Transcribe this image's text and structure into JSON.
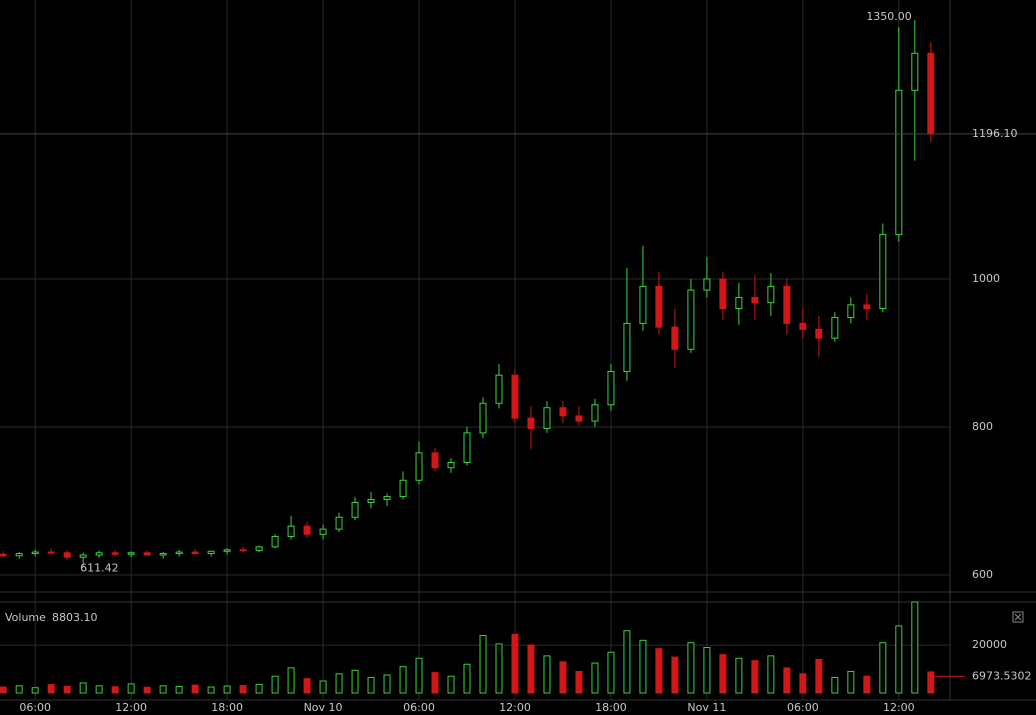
{
  "chart_data": {
    "type": "candlestick",
    "x": [
      4,
      5,
      6,
      7,
      8,
      9,
      10,
      11,
      12,
      13,
      14,
      15,
      16,
      17,
      18,
      19,
      20,
      21,
      22,
      23,
      24,
      25,
      26,
      27,
      28,
      29,
      30,
      31,
      32,
      33,
      34,
      35,
      36,
      37,
      38,
      39,
      40,
      41,
      42,
      43,
      44,
      45,
      46,
      47,
      48,
      49,
      50,
      51,
      52,
      53,
      54,
      55,
      56,
      57,
      58,
      59,
      60,
      61,
      62
    ],
    "open": [
      628,
      626,
      629,
      631,
      630,
      624,
      627,
      630,
      628,
      630,
      627,
      629,
      631,
      629,
      632,
      634,
      633,
      638,
      652,
      666,
      655,
      662,
      678,
      698,
      702,
      706,
      728,
      765,
      745,
      752,
      792,
      832,
      870,
      812,
      798,
      826,
      815,
      808,
      830,
      875,
      940,
      990,
      935,
      905,
      985,
      1000,
      960,
      975,
      968,
      990,
      940,
      932,
      920,
      948,
      965,
      960,
      1060,
      1255,
      1305
    ],
    "high": [
      632,
      631,
      634,
      636,
      633,
      630,
      633,
      634,
      632,
      633,
      631,
      634,
      635,
      633,
      636,
      638,
      640,
      655,
      680,
      672,
      668,
      684,
      705,
      712,
      710,
      740,
      780,
      772,
      758,
      800,
      840,
      885,
      878,
      828,
      835,
      835,
      828,
      838,
      885,
      1015,
      1045,
      1010,
      960,
      1000,
      1030,
      1010,
      995,
      1005,
      1008,
      1000,
      960,
      950,
      955,
      975,
      980,
      1075,
      1340,
      1350,
      1320
    ],
    "low": [
      624,
      622,
      625,
      627,
      620,
      611.42,
      623,
      625,
      624,
      626,
      622,
      625,
      627,
      625,
      628,
      630,
      631,
      636,
      648,
      650,
      648,
      658,
      674,
      690,
      693,
      702,
      722,
      740,
      738,
      748,
      785,
      825,
      805,
      770,
      792,
      805,
      802,
      800,
      822,
      862,
      930,
      925,
      880,
      900,
      975,
      945,
      938,
      945,
      950,
      925,
      920,
      895,
      915,
      940,
      945,
      955,
      1050,
      1160,
      1185
    ],
    "close": [
      626,
      629,
      631,
      630,
      624,
      627,
      630,
      628,
      630,
      627,
      629,
      631,
      629,
      632,
      634,
      633,
      638,
      652,
      666,
      655,
      662,
      678,
      698,
      702,
      706,
      728,
      765,
      745,
      752,
      792,
      832,
      870,
      812,
      798,
      826,
      815,
      808,
      830,
      875,
      940,
      990,
      935,
      905,
      985,
      1000,
      960,
      975,
      968,
      990,
      940,
      932,
      920,
      948,
      965,
      960,
      1060,
      1255,
      1305,
      1196.1
    ],
    "volume": [
      2500,
      3000,
      2200,
      3500,
      2800,
      4200,
      3000,
      2600,
      3800,
      2400,
      3000,
      2700,
      3300,
      2500,
      2900,
      3100,
      3600,
      7000,
      10500,
      6000,
      5000,
      8000,
      9500,
      6500,
      7500,
      11000,
      14500,
      8500,
      7000,
      12000,
      24000,
      20500,
      24500,
      20000,
      15500,
      13000,
      9000,
      12500,
      17000,
      26000,
      22000,
      18500,
      15000,
      21000,
      19000,
      16000,
      14500,
      13500,
      15500,
      10500,
      8000,
      14000,
      6500,
      9000,
      7000,
      21000,
      28000,
      38000,
      8803.1
    ],
    "up_color": "#3ad43a",
    "down_color": "#d01818",
    "xlim": [
      3.8,
      63.2
    ],
    "xticks": [
      {
        "value": 6,
        "label": "06:00"
      },
      {
        "value": 12,
        "label": "12:00"
      },
      {
        "value": 18,
        "label": "18:00"
      },
      {
        "value": 24,
        "label": "Nov 10"
      },
      {
        "value": 30,
        "label": "06:00"
      },
      {
        "value": 36,
        "label": "12:00"
      },
      {
        "value": 42,
        "label": "18:00"
      },
      {
        "value": 48,
        "label": "Nov 11"
      },
      {
        "value": 54,
        "label": "06:00"
      },
      {
        "value": 60,
        "label": "12:00"
      }
    ],
    "ylim": [
      577,
      1377
    ],
    "yticks": [
      600,
      800,
      1000
    ],
    "vlim": [
      0,
      38000
    ],
    "vticks": [
      20000
    ],
    "high_label": {
      "value": 1350,
      "label": "1350.00"
    },
    "low_label": 611.42,
    "last_price": {
      "value": 1196.1,
      "label": "1196.10"
    },
    "volume_title": "Volume",
    "volume_last": {
      "value": 8803.1,
      "label": "8803.10"
    },
    "volume_ma": 6973.5302,
    "grid": true
  }
}
